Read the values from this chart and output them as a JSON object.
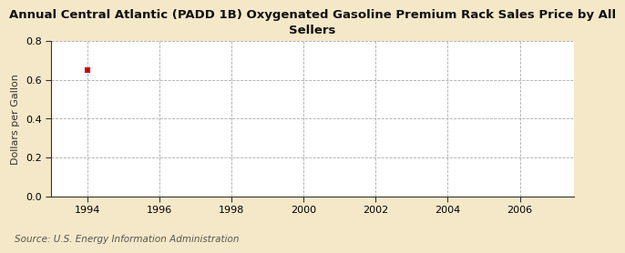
{
  "title": "Annual Central Atlantic (PADD 1B) Oxygenated Gasoline Premium Rack Sales Price by All\nSellers",
  "ylabel": "Dollars per Gallon",
  "source": "Source: U.S. Energy Information Administration",
  "xlim": [
    1993.0,
    2007.5
  ],
  "ylim": [
    0.0,
    0.8
  ],
  "xticks": [
    1994,
    1996,
    1998,
    2000,
    2002,
    2004,
    2006
  ],
  "yticks": [
    0.0,
    0.2,
    0.4,
    0.6,
    0.8
  ],
  "data_x": [
    1994
  ],
  "data_y": [
    0.653
  ],
  "point_color": "#cc0000",
  "bg_color": "#f5e8c8",
  "plot_bg_color": "#ffffff",
  "grid_color": "#aaaaaa",
  "spine_color": "#333333",
  "title_fontsize": 9.5,
  "label_fontsize": 8,
  "tick_fontsize": 8,
  "source_fontsize": 7.5
}
